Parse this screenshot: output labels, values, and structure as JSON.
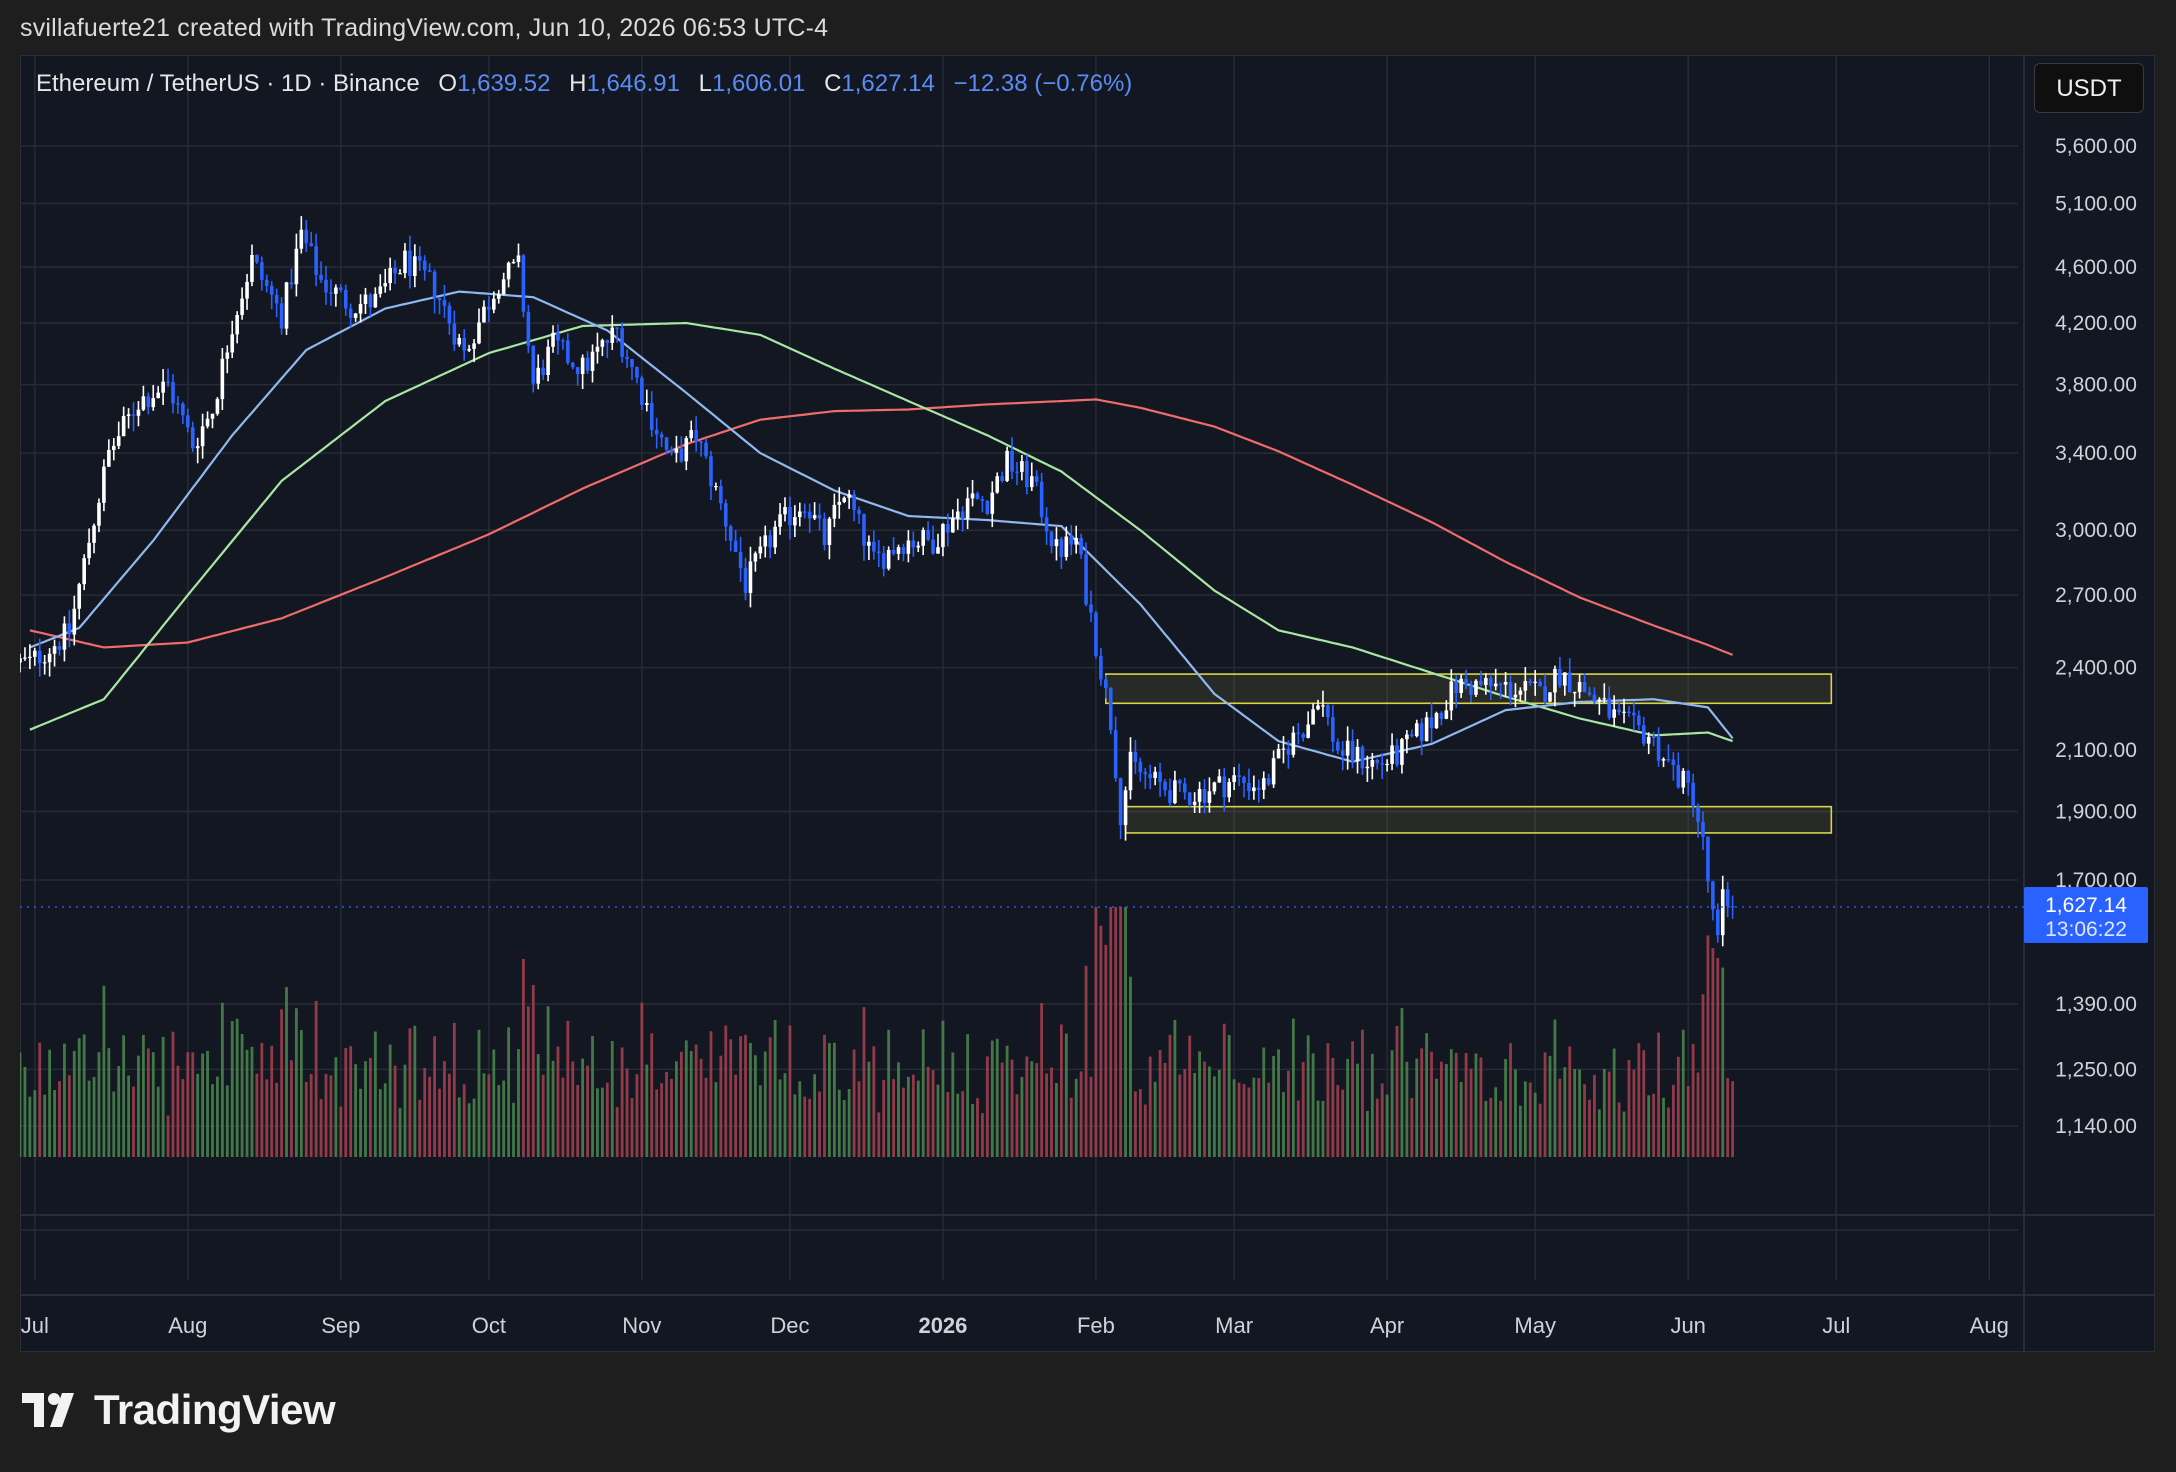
{
  "header": {
    "text": "svillafuerte21 created with TradingView.com, Jun 10, 2026 06:53 UTC-4"
  },
  "symbol": {
    "name": "Ethereum / TetherUS · 1D · Binance",
    "open_label": "O",
    "open": "1,639.52",
    "high_label": "H",
    "high": "1,646.91",
    "low_label": "L",
    "low": "1,606.01",
    "close_label": "C",
    "close": "1,627.14",
    "change": "−12.38 (−0.76%)"
  },
  "currency": "USDT",
  "price_tag": {
    "price": "1,627.14",
    "countdown": "13:06:22"
  },
  "brand": {
    "name": "TradingView"
  },
  "colors": {
    "background": "#131722",
    "up": "#ffffff",
    "down": "#2962ff",
    "ma_fast": "#8fb8ee",
    "ma_mid": "#a8e6a1",
    "ma_slow": "#f06b6b",
    "zone": "#d8d44a",
    "volume_up": "#4c8a4c",
    "volume_down": "#a8414f",
    "price_tag": "#2962ff"
  },
  "chart_data": {
    "type": "candlestick",
    "scale": "log",
    "y_ticks": [
      5600,
      5100,
      4600,
      4200,
      3800,
      3400,
      3000,
      2700,
      2400,
      2100,
      1900,
      1700,
      1390,
      1250,
      1140
    ],
    "y_tick_labels": [
      "5,600.00",
      "5,100.00",
      "4,600.00",
      "4,200.00",
      "3,800.00",
      "3,400.00",
      "3,000.00",
      "2,700.00",
      "2,400.00",
      "2,100.00",
      "1,900.00",
      "1,700.00",
      "1,390.00",
      "1,250.00",
      "1,140.00"
    ],
    "x_labels": [
      "Jul",
      "Aug",
      "Sep",
      "Oct",
      "Nov",
      "Dec",
      "2026",
      "Feb",
      "Mar",
      "Apr",
      "May",
      "Jun",
      "Jul",
      "Aug"
    ],
    "x_label_bold": "2026",
    "last_price": 1627.14,
    "price_path": [
      [
        "2025-06-30",
        2420
      ],
      [
        "2025-07-08",
        2540
      ],
      [
        "2025-07-12",
        2950
      ],
      [
        "2025-07-16",
        3400
      ],
      [
        "2025-07-22",
        3700
      ],
      [
        "2025-07-28",
        3800
      ],
      [
        "2025-08-02",
        3450
      ],
      [
        "2025-08-06",
        3650
      ],
      [
        "2025-08-10",
        4200
      ],
      [
        "2025-08-14",
        4650
      ],
      [
        "2025-08-20",
        4250
      ],
      [
        "2025-08-24",
        4850
      ],
      [
        "2025-08-28",
        4500
      ],
      [
        "2025-09-03",
        4320
      ],
      [
        "2025-09-08",
        4350
      ],
      [
        "2025-09-14",
        4650
      ],
      [
        "2025-09-20",
        4450
      ],
      [
        "2025-09-26",
        4000
      ],
      [
        "2025-10-03",
        4500
      ],
      [
        "2025-10-07",
        4600
      ],
      [
        "2025-10-10",
        3800
      ],
      [
        "2025-10-14",
        4050
      ],
      [
        "2025-10-20",
        3900
      ],
      [
        "2025-10-27",
        4150
      ],
      [
        "2025-11-03",
        3600
      ],
      [
        "2025-11-07",
        3350
      ],
      [
        "2025-11-12",
        3500
      ],
      [
        "2025-11-18",
        3050
      ],
      [
        "2025-11-22",
        2750
      ],
      [
        "2025-11-28",
        3000
      ],
      [
        "2025-12-04",
        3150
      ],
      [
        "2025-12-08",
        2950
      ],
      [
        "2025-12-12",
        3200
      ],
      [
        "2025-12-18",
        2850
      ],
      [
        "2025-12-24",
        2950
      ],
      [
        "2025-12-30",
        2950
      ],
      [
        "2026-01-06",
        3150
      ],
      [
        "2026-01-10",
        3150
      ],
      [
        "2026-01-14",
        3350
      ],
      [
        "2026-01-19",
        3250
      ],
      [
        "2026-01-24",
        2900
      ],
      [
        "2026-01-28",
        2950
      ],
      [
        "2026-02-01",
        2500
      ],
      [
        "2026-02-04",
        2200
      ],
      [
        "2026-02-06",
        1900
      ],
      [
        "2026-02-08",
        2050
      ],
      [
        "2026-02-12",
        2000
      ],
      [
        "2026-02-18",
        1950
      ],
      [
        "2026-02-22",
        1960
      ],
      [
        "2026-03-01",
        2000
      ],
      [
        "2026-03-07",
        1980
      ],
      [
        "2026-03-12",
        2120
      ],
      [
        "2026-03-16",
        2200
      ],
      [
        "2026-03-18",
        2300
      ],
      [
        "2026-03-22",
        2100
      ],
      [
        "2026-03-30",
        2050
      ],
      [
        "2026-04-03",
        2080
      ],
      [
        "2026-04-10",
        2200
      ],
      [
        "2026-04-15",
        2330
      ],
      [
        "2026-04-20",
        2330
      ],
      [
        "2026-04-26",
        2320
      ],
      [
        "2026-05-02",
        2300
      ],
      [
        "2026-05-06",
        2380
      ],
      [
        "2026-05-12",
        2300
      ],
      [
        "2026-05-18",
        2200
      ],
      [
        "2026-05-24",
        2150
      ],
      [
        "2026-05-30",
        2010
      ],
      [
        "2026-06-02",
        1950
      ],
      [
        "2026-06-04",
        1800
      ],
      [
        "2026-06-06",
        1600
      ],
      [
        "2026-06-07",
        1530
      ],
      [
        "2026-06-08",
        1650
      ],
      [
        "2026-06-10",
        1627
      ]
    ],
    "ma_fast": [
      [
        "2025-06-30",
        2480
      ],
      [
        "2025-07-10",
        2560
      ],
      [
        "2025-07-25",
        2950
      ],
      [
        "2025-08-10",
        3500
      ],
      [
        "2025-08-25",
        4020
      ],
      [
        "2025-09-10",
        4300
      ],
      [
        "2025-09-25",
        4420
      ],
      [
        "2025-10-10",
        4380
      ],
      [
        "2025-10-25",
        4150
      ],
      [
        "2025-11-10",
        3750
      ],
      [
        "2025-11-25",
        3400
      ],
      [
        "2025-12-10",
        3200
      ],
      [
        "2025-12-25",
        3070
      ],
      [
        "2026-01-10",
        3050
      ],
      [
        "2026-01-25",
        3020
      ],
      [
        "2026-02-10",
        2660
      ],
      [
        "2026-02-25",
        2300
      ],
      [
        "2026-03-10",
        2130
      ],
      [
        "2026-03-25",
        2060
      ],
      [
        "2026-04-10",
        2120
      ],
      [
        "2026-04-25",
        2240
      ],
      [
        "2026-05-10",
        2270
      ],
      [
        "2026-05-25",
        2280
      ],
      [
        "2026-06-05",
        2250
      ],
      [
        "2026-06-10",
        2140
      ]
    ],
    "ma_mid": [
      [
        "2025-06-30",
        2170
      ],
      [
        "2025-07-15",
        2280
      ],
      [
        "2025-08-01",
        2700
      ],
      [
        "2025-08-20",
        3250
      ],
      [
        "2025-09-10",
        3700
      ],
      [
        "2025-10-01",
        4000
      ],
      [
        "2025-10-20",
        4180
      ],
      [
        "2025-11-10",
        4200
      ],
      [
        "2025-11-25",
        4120
      ],
      [
        "2025-12-10",
        3900
      ],
      [
        "2025-12-25",
        3700
      ],
      [
        "2026-01-10",
        3500
      ],
      [
        "2026-01-25",
        3300
      ],
      [
        "2026-02-10",
        3000
      ],
      [
        "2026-02-25",
        2720
      ],
      [
        "2026-03-10",
        2550
      ],
      [
        "2026-03-25",
        2480
      ],
      [
        "2026-04-10",
        2380
      ],
      [
        "2026-04-25",
        2290
      ],
      [
        "2026-05-10",
        2210
      ],
      [
        "2026-05-25",
        2150
      ],
      [
        "2026-06-05",
        2160
      ],
      [
        "2026-06-10",
        2130
      ]
    ],
    "ma_slow": [
      [
        "2025-06-30",
        2550
      ],
      [
        "2025-07-15",
        2480
      ],
      [
        "2025-08-01",
        2500
      ],
      [
        "2025-08-20",
        2600
      ],
      [
        "2025-09-10",
        2780
      ],
      [
        "2025-10-01",
        2980
      ],
      [
        "2025-10-20",
        3210
      ],
      [
        "2025-11-10",
        3450
      ],
      [
        "2025-11-25",
        3590
      ],
      [
        "2025-12-10",
        3640
      ],
      [
        "2025-12-25",
        3650
      ],
      [
        "2026-01-10",
        3680
      ],
      [
        "2026-01-25",
        3700
      ],
      [
        "2026-02-01",
        3710
      ],
      [
        "2026-02-10",
        3660
      ],
      [
        "2026-02-25",
        3550
      ],
      [
        "2026-03-10",
        3410
      ],
      [
        "2026-03-25",
        3230
      ],
      [
        "2026-04-10",
        3040
      ],
      [
        "2026-04-25",
        2850
      ],
      [
        "2026-05-10",
        2690
      ],
      [
        "2026-05-25",
        2570
      ],
      [
        "2026-06-05",
        2490
      ],
      [
        "2026-06-10",
        2450
      ]
    ],
    "zones": [
      {
        "from": "2026-02-03",
        "to": "2026-06-30",
        "low": 2265,
        "high": 2375
      },
      {
        "from": "2026-02-07",
        "to": "2026-06-30",
        "low": 1835,
        "high": 1915
      }
    ],
    "grid": true
  }
}
